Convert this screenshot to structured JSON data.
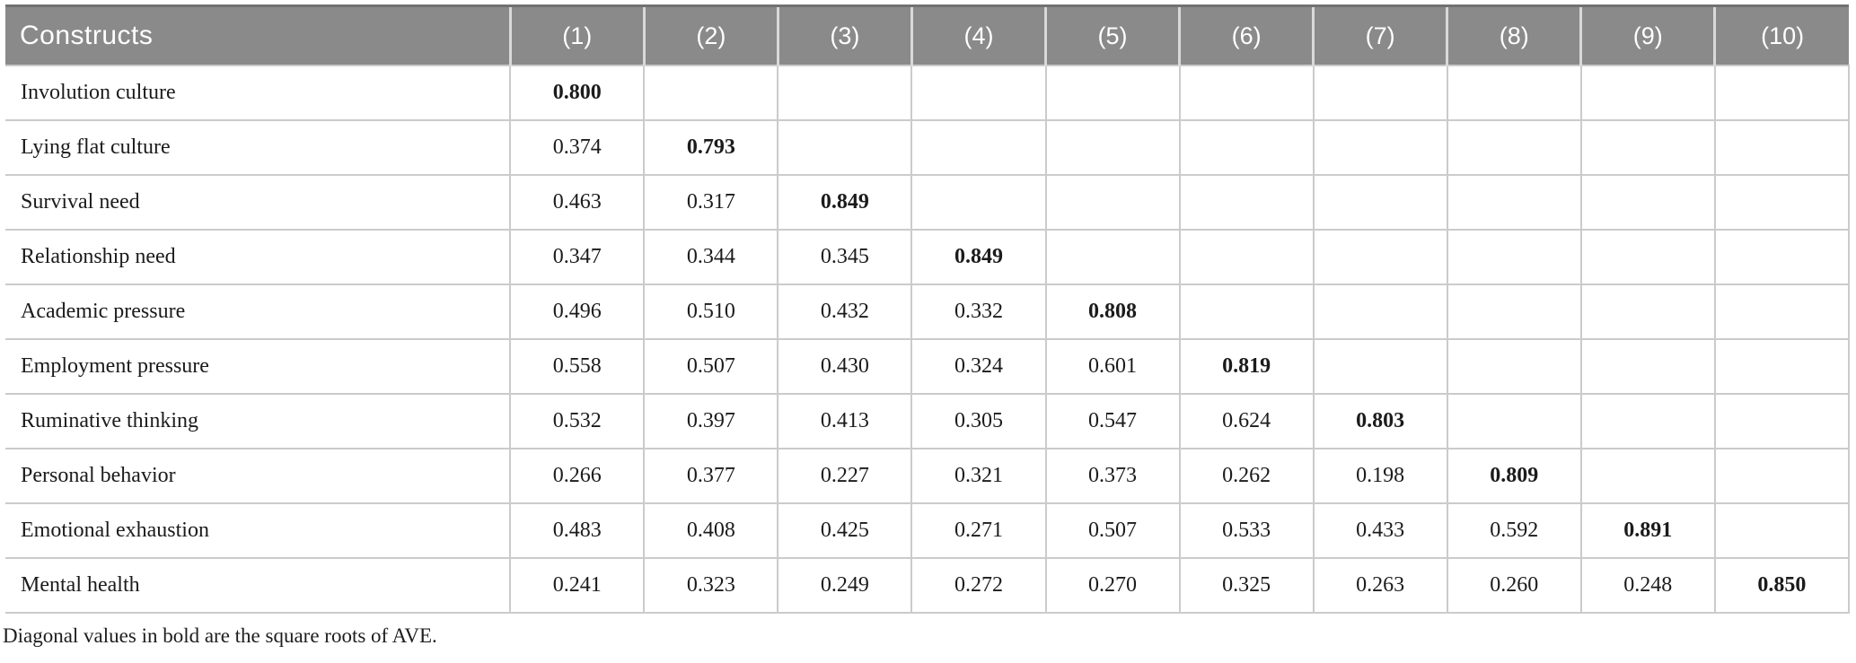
{
  "colors": {
    "header_bg": "#8a8a8a",
    "header_text": "#ffffff",
    "header_top_border": "#717171",
    "header_divider": "#d9d9d9",
    "body_border": "#cbcbcb",
    "body_text": "#1b1b1b"
  },
  "table": {
    "corner_label": "Constructs",
    "column_headers": [
      "(1)",
      "(2)",
      "(3)",
      "(4)",
      "(5)",
      "(6)",
      "(7)",
      "(8)",
      "(9)",
      "(10)"
    ],
    "rows": [
      {
        "label": "Involution culture",
        "values": [
          "0.800",
          "",
          "",
          "",
          "",
          "",
          "",
          "",
          "",
          ""
        ],
        "bold_index": 0
      },
      {
        "label": "Lying flat culture",
        "values": [
          "0.374",
          "0.793",
          "",
          "",
          "",
          "",
          "",
          "",
          "",
          ""
        ],
        "bold_index": 1
      },
      {
        "label": "Survival need",
        "values": [
          "0.463",
          "0.317",
          "0.849",
          "",
          "",
          "",
          "",
          "",
          "",
          ""
        ],
        "bold_index": 2
      },
      {
        "label": "Relationship need",
        "values": [
          "0.347",
          "0.344",
          "0.345",
          "0.849",
          "",
          "",
          "",
          "",
          "",
          ""
        ],
        "bold_index": 3
      },
      {
        "label": "Academic pressure",
        "values": [
          "0.496",
          "0.510",
          "0.432",
          "0.332",
          "0.808",
          "",
          "",
          "",
          "",
          ""
        ],
        "bold_index": 4
      },
      {
        "label": "Employment pressure",
        "values": [
          "0.558",
          "0.507",
          "0.430",
          "0.324",
          "0.601",
          "0.819",
          "",
          "",
          "",
          ""
        ],
        "bold_index": 5
      },
      {
        "label": "Ruminative thinking",
        "values": [
          "0.532",
          "0.397",
          "0.413",
          "0.305",
          "0.547",
          "0.624",
          "0.803",
          "",
          "",
          ""
        ],
        "bold_index": 6
      },
      {
        "label": "Personal behavior",
        "values": [
          "0.266",
          "0.377",
          "0.227",
          "0.321",
          "0.373",
          "0.262",
          "0.198",
          "0.809",
          "",
          ""
        ],
        "bold_index": 7
      },
      {
        "label": "Emotional exhaustion",
        "values": [
          "0.483",
          "0.408",
          "0.425",
          "0.271",
          "0.507",
          "0.533",
          "0.433",
          "0.592",
          "0.891",
          ""
        ],
        "bold_index": 8
      },
      {
        "label": "Mental health",
        "values": [
          "0.241",
          "0.323",
          "0.249",
          "0.272",
          "0.270",
          "0.325",
          "0.263",
          "0.260",
          "0.248",
          "0.850"
        ],
        "bold_index": 9
      }
    ],
    "footnote": "Diagonal values in bold are the square roots of AVE."
  }
}
